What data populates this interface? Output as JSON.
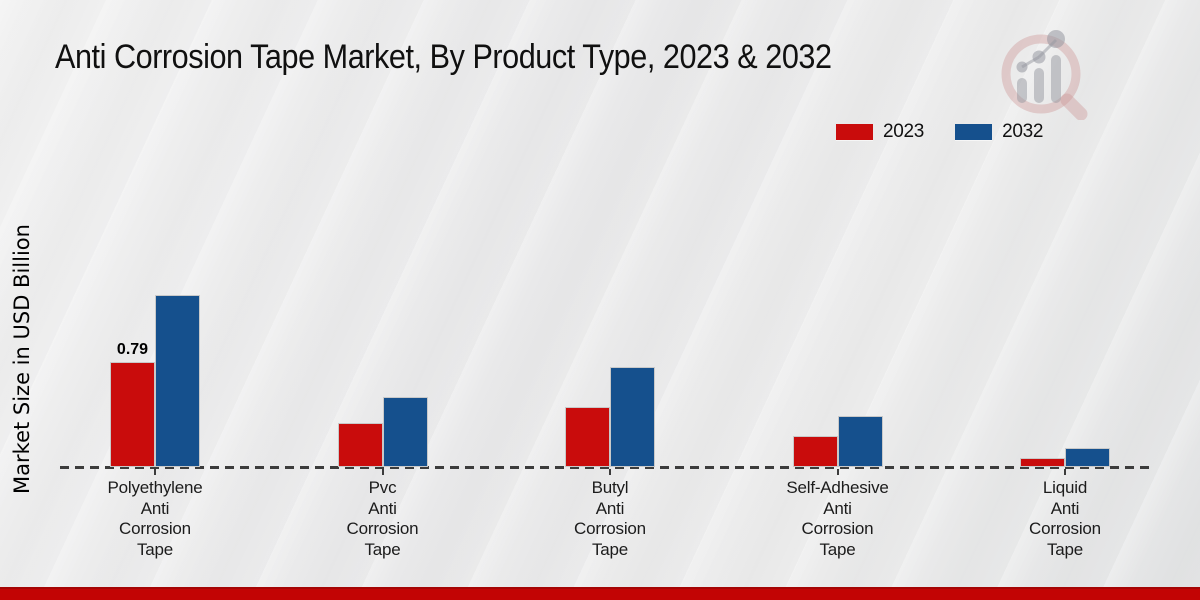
{
  "header": {
    "title": "Anti Corrosion Tape Market, By Product Type, 2023 & 2032"
  },
  "chart_data": {
    "type": "bar",
    "title": "Anti Corrosion Tape Market, By Product Type, 2023 & 2032",
    "xlabel": "",
    "ylabel": "Market Size in USD Billion",
    "categories": [
      "Polyethylene Anti Corrosion Tape",
      "Pvc Anti Corrosion Tape",
      "Butyl Anti Corrosion Tape",
      "Self-Adhesive Anti Corrosion Tape",
      "Liquid Anti Corrosion Tape"
    ],
    "series": [
      {
        "name": "2023",
        "color": "#c90c0c",
        "values": [
          0.79,
          0.33,
          0.45,
          0.23,
          0.07
        ]
      },
      {
        "name": "2032",
        "color": "#15508d",
        "values": [
          1.29,
          0.53,
          0.75,
          0.38,
          0.14
        ]
      }
    ],
    "annotations": [
      {
        "series": "2023",
        "category_index": 0,
        "text": "0.79"
      }
    ],
    "ylim": [
      0,
      1.6
    ],
    "grid": false,
    "baseline_style": "dashed",
    "legend_position": "top-right",
    "baseline_color": "#3c3c3c"
  },
  "footer": {
    "accent_color": "#c20404"
  },
  "icons": {
    "logo": "magnifier-bar-chart-logo"
  }
}
